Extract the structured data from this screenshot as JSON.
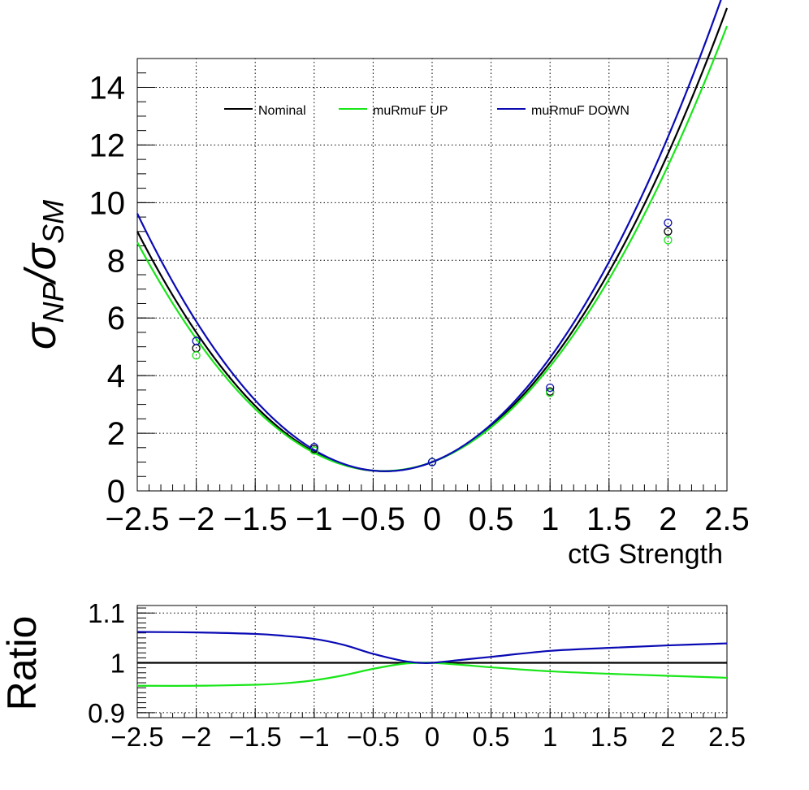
{
  "chart_data": [
    {
      "type": "line",
      "xlabel": "ctG Strength",
      "ylabel_main": "σ",
      "ylabel_sub1": "NP",
      "ylabel_slash": "/σ",
      "ylabel_sub2": "SM",
      "xlim": [
        -2.5,
        2.5
      ],
      "ylim": [
        0,
        15
      ],
      "x_ticks": [
        "−2.5",
        "−2",
        "−1.5",
        "−1",
        "−0.5",
        "0",
        "0.5",
        "1",
        "1.5",
        "2",
        "2.5"
      ],
      "y_ticks": [
        "0",
        "2",
        "4",
        "6",
        "8",
        "10",
        "12",
        "14"
      ],
      "grid": true,
      "legend_position": "top",
      "series": [
        {
          "name": "Nominal",
          "color": "#000000",
          "coef": [
            1.0,
            1.55,
            1.9
          ],
          "points_x": [
            -2,
            -1,
            0,
            1,
            2
          ],
          "points_y": [
            4.95,
            1.46,
            1.0,
            3.45,
            9.0
          ]
        },
        {
          "name": "muRmuF UP",
          "color": "#19e619",
          "coef": [
            1.0,
            1.5,
            1.82
          ],
          "points_x": [
            -2,
            -1,
            0,
            1,
            2
          ],
          "points_y": [
            4.7,
            1.4,
            1.0,
            3.4,
            8.7
          ]
        },
        {
          "name": "muRmuF DOWN",
          "color": "#0a0ab4",
          "coef": [
            1.0,
            1.6,
            2.02
          ],
          "points_x": [
            -2,
            -1,
            0,
            1,
            2
          ],
          "points_y": [
            5.2,
            1.52,
            1.0,
            3.58,
            9.3
          ]
        }
      ]
    },
    {
      "type": "line",
      "ylabel": "Ratio",
      "xlim": [
        -2.5,
        2.5
      ],
      "ylim": [
        0.89,
        1.115
      ],
      "x_ticks": [
        "−2.5",
        "−2",
        "−1.5",
        "−1",
        "−0.5",
        "0",
        "0.5",
        "1",
        "1.5",
        "2",
        "2.5"
      ],
      "y_ticks": [
        "0.9",
        "1",
        "1.1"
      ],
      "grid": true,
      "series": [
        {
          "name": "Nominal",
          "color": "#000000",
          "x": [
            -2.5,
            2.5
          ],
          "y": [
            1.0,
            1.0
          ]
        },
        {
          "name": "muRmuF UP",
          "color": "#19e619",
          "x": [
            -2.5,
            -2.0,
            -1.5,
            -1.25,
            -1.0,
            -0.75,
            -0.5,
            -0.25,
            -0.1,
            0.0,
            0.25,
            0.5,
            1.0,
            1.5,
            2.0,
            2.5
          ],
          "y": [
            0.954,
            0.954,
            0.956,
            0.959,
            0.965,
            0.975,
            0.988,
            0.998,
            1.0,
            1.0,
            0.996,
            0.991,
            0.983,
            0.978,
            0.974,
            0.97
          ]
        },
        {
          "name": "muRmuF DOWN",
          "color": "#0a0ab4",
          "x": [
            -2.5,
            -2.0,
            -1.5,
            -1.25,
            -1.0,
            -0.75,
            -0.5,
            -0.25,
            -0.1,
            0.0,
            0.25,
            0.5,
            1.0,
            1.5,
            2.0,
            2.5
          ],
          "y": [
            1.062,
            1.061,
            1.058,
            1.054,
            1.048,
            1.036,
            1.018,
            1.004,
            1.0,
            1.0,
            1.006,
            1.012,
            1.024,
            1.03,
            1.035,
            1.039
          ]
        }
      ]
    }
  ]
}
